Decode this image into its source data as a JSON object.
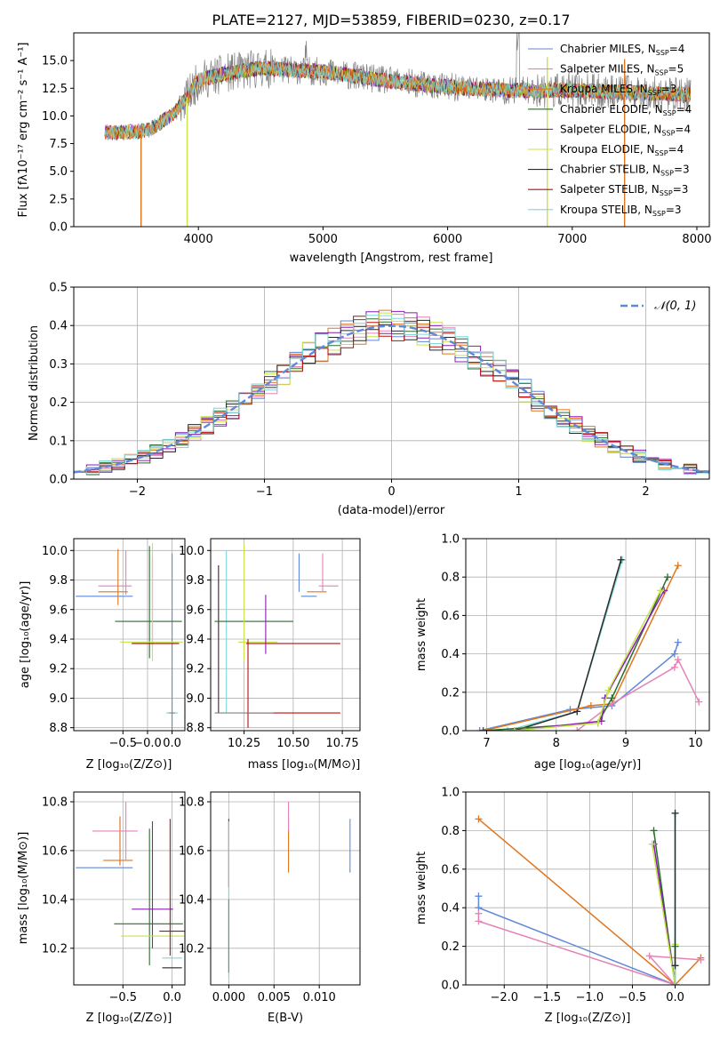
{
  "colors": {
    "chab_miles": "#5f88d9",
    "salp_miles": "#e583b6",
    "krou_miles": "#e0761d",
    "chab_elodie": "#2e6b2e",
    "salp_elodie": "#8a1db3",
    "krou_elodie": "#c6e34a",
    "chab_stelib": "#2a2a2a",
    "salp_stelib": "#b80e0e",
    "krou_stelib": "#7fd6d6",
    "data": "#808080",
    "normal": "#5f88d9"
  },
  "chart_data": [
    {
      "id": "spectrum",
      "type": "line",
      "title": "PLATE=2127, MJD=53859, FIBERID=0230, z=0.17",
      "xlabel": "wavelength [Angstrom, rest frame]",
      "ylabel": "Flux [fλ10⁻¹⁷ erg cm⁻² s⁻¹ A⁻¹]",
      "xlim": [
        3000,
        8100
      ],
      "ylim": [
        0,
        17.5
      ],
      "xticks": [
        "4000",
        "5000",
        "6000",
        "7000",
        "8000"
      ],
      "yticks": [
        "0.0",
        "2.5",
        "5.0",
        "7.5",
        "10.0",
        "12.5",
        "15.0"
      ],
      "legend": [
        "Chabrier MILES, N_SSP=4",
        "Salpeter MILES, N_SSP=5",
        "Kroupa MILES, N_SSP=3",
        "Chabrier ELODIE, N_SSP=4",
        "Salpeter ELODIE, N_SSP=4",
        "Kroupa ELODIE, N_SSP=4",
        "Chabrier STELIB, N_SSP=3",
        "Salpeter STELIB, N_SSP=3",
        "Kroupa STELIB, N_SSP=3"
      ],
      "legend_placement": "right",
      "data_trend": [
        [
          3250,
          8.5
        ],
        [
          3400,
          8.5
        ],
        [
          3600,
          8.7
        ],
        [
          3800,
          10.2
        ],
        [
          3900,
          11.5
        ],
        [
          4000,
          13.2
        ],
        [
          4200,
          13.8
        ],
        [
          4500,
          14.3
        ],
        [
          5000,
          14.0
        ],
        [
          5500,
          13.2
        ],
        [
          6000,
          12.6
        ],
        [
          6500,
          12.3
        ],
        [
          7000,
          12.3
        ],
        [
          7500,
          12.1
        ],
        [
          7950,
          11.9
        ]
      ],
      "model_dropouts": [
        {
          "series": "Kroupa MILES",
          "lambda_start": 3540,
          "lambda_end": 7420
        },
        {
          "series": "Kroupa ELODIE",
          "lambda_start": 3910,
          "lambda_end": 6800
        }
      ]
    },
    {
      "id": "residuals",
      "type": "bar",
      "xlabel": "(data-model)/error",
      "ylabel": "Normed distribution",
      "xlim": [
        -2.5,
        2.5
      ],
      "ylim": [
        0,
        0.5
      ],
      "xticks": [
        "−2",
        "−1",
        "0",
        "1",
        "2"
      ],
      "yticks": [
        "0.0",
        "0.1",
        "0.2",
        "0.3",
        "0.4",
        "0.5"
      ],
      "grid": true,
      "legend": [
        "𝒩(0, 1)"
      ],
      "legend_placement": "top-right",
      "bin_width": 0.1,
      "bin_start": -2.5
    },
    {
      "id": "age_vs_Z",
      "type": "scatter",
      "xlabel": "Z [log₁₀(Z/Z⊙)]",
      "ylabel": "age  [log₁₀(age/yr)]",
      "xlim": [
        -1.0,
        0.13
      ],
      "ylim": [
        8.78,
        10.08
      ],
      "xticks": [
        "−0.5",
        "−0.0",
        "0.0"
      ],
      "yticks": [
        "8.8",
        "9.0",
        "9.2",
        "9.4",
        "9.6",
        "9.8",
        "10.0"
      ],
      "grid": true,
      "crosses": [
        {
          "s": "chab_miles",
          "x": -0.69,
          "xerr": 0.29,
          "y": 9.69,
          "yerr": 0.0
        },
        {
          "s": "chab_miles",
          "x": 0.0,
          "xerr": 0.0,
          "y": 9.3,
          "yerr": 0.68
        },
        {
          "s": "salp_miles",
          "x": -0.58,
          "xerr": 0.17,
          "y": 9.76,
          "yerr": 0.0
        },
        {
          "s": "salp_miles",
          "x": -0.47,
          "xerr": 0.0,
          "y": 9.85,
          "yerr": 0.15
        },
        {
          "s": "krou_miles",
          "x": -0.6,
          "xerr": 0.15,
          "y": 9.72,
          "yerr": 0.0
        },
        {
          "s": "krou_miles",
          "x": -0.55,
          "xerr": 0.0,
          "y": 9.82,
          "yerr": 0.19
        },
        {
          "s": "chab_elodie",
          "x": -0.24,
          "xerr": 0.34,
          "y": 9.52,
          "yerr": 0.0
        },
        {
          "s": "chab_elodie",
          "x": -0.23,
          "xerr": 0.0,
          "y": 9.65,
          "yerr": 0.38
        },
        {
          "s": "salp_elodie",
          "x": -0.2,
          "xerr": 0.0,
          "y": 9.65,
          "yerr": 0.3
        },
        {
          "s": "krou_elodie",
          "x": -0.21,
          "xerr": 0.32,
          "y": 9.38,
          "yerr": 0.0
        },
        {
          "s": "krou_elodie",
          "x": -0.2,
          "xerr": 0.0,
          "y": 9.65,
          "yerr": 0.4
        },
        {
          "s": "chab_stelib",
          "x": -0.17,
          "xerr": 0.24,
          "y": 9.37,
          "yerr": 0.0
        },
        {
          "s": "salp_stelib",
          "x": -0.17,
          "xerr": 0.24,
          "y": 9.37,
          "yerr": 0.0
        },
        {
          "s": "krou_stelib",
          "x": 0.0,
          "xerr": 0.06,
          "y": 8.9,
          "yerr": 0.0
        },
        {
          "s": "data",
          "x": 0.0,
          "xerr": 0.03,
          "y": 8.9,
          "yerr": 0.0
        }
      ]
    },
    {
      "id": "age_vs_mass",
      "type": "scatter",
      "xlabel": "mass [log₁₀(M/M⊙)]",
      "xlim": [
        10.08,
        10.84
      ],
      "ylim": [
        8.78,
        10.08
      ],
      "xticks": [
        "10.25",
        "10.50",
        "10.75"
      ],
      "yticks": [
        "8.8",
        "9.0",
        "9.2",
        "9.4",
        "9.6",
        "9.8",
        "10.0"
      ],
      "grid": true,
      "crosses": [
        {
          "s": "chab_stelib",
          "x": 10.12,
          "xerr": 0.0,
          "y": 9.4,
          "yerr": 0.5
        },
        {
          "s": "krou_stelib",
          "x": 10.16,
          "xerr": 0.0,
          "y": 9.45,
          "yerr": 0.55
        },
        {
          "s": "chab_elodie",
          "x": 10.3,
          "xerr": 0.2,
          "y": 9.52,
          "yerr": 0.0
        },
        {
          "s": "krou_elodie",
          "x": 10.25,
          "xerr": 0.0,
          "y": 9.65,
          "yerr": 0.4
        },
        {
          "s": "krou_elodie",
          "x": 10.32,
          "xerr": 0.1,
          "y": 9.38,
          "yerr": 0.0
        },
        {
          "s": "salp_elodie",
          "x": 10.36,
          "xerr": 0.0,
          "y": 9.5,
          "yerr": 0.2
        },
        {
          "s": "salp_stelib",
          "x": 10.27,
          "xerr": 0.0,
          "y": 9.1,
          "yerr": 0.3
        },
        {
          "s": "salp_stelib",
          "x": 10.5,
          "xerr": 0.24,
          "y": 9.37,
          "yerr": 0.0
        },
        {
          "s": "salp_stelib",
          "x": 10.5,
          "xerr": 0.24,
          "y": 8.9,
          "yerr": 0.0
        },
        {
          "s": "chab_miles",
          "x": 10.58,
          "xerr": 0.04,
          "y": 9.69,
          "yerr": 0.0
        },
        {
          "s": "chab_miles",
          "x": 10.53,
          "xerr": 0.0,
          "y": 9.85,
          "yerr": 0.13
        },
        {
          "s": "krou_miles",
          "x": 10.62,
          "xerr": 0.05,
          "y": 9.72,
          "yerr": 0.0
        },
        {
          "s": "salp_miles",
          "x": 10.68,
          "xerr": 0.05,
          "y": 9.76,
          "yerr": 0.0
        },
        {
          "s": "salp_miles",
          "x": 10.65,
          "xerr": 0.0,
          "y": 9.85,
          "yerr": 0.13
        },
        {
          "s": "data",
          "x": 10.25,
          "xerr": 0.15,
          "y": 8.9,
          "yerr": 0.0
        }
      ]
    },
    {
      "id": "weight_vs_age",
      "type": "line",
      "xlabel": "age  [log₁₀(age/yr)]",
      "ylabel": "mass weight",
      "xlim": [
        6.7,
        10.2
      ],
      "ylim": [
        0,
        1.0
      ],
      "xticks": [
        "7",
        "8",
        "9",
        "10"
      ],
      "yticks": [
        "0.0",
        "0.2",
        "0.4",
        "0.6",
        "0.8",
        "1.0"
      ],
      "grid": true,
      "series": [
        {
          "s": "krou_stelib",
          "points": [
            [
              7.3,
              0.0
            ],
            [
              8.3,
              0.1
            ],
            [
              8.95,
              0.89
            ]
          ]
        },
        {
          "s": "chab_stelib",
          "points": [
            [
              7.4,
              0.0
            ],
            [
              8.3,
              0.1
            ],
            [
              8.93,
              0.89
            ]
          ]
        },
        {
          "s": "chab_miles",
          "points": [
            [
              6.9,
              0.0
            ],
            [
              8.2,
              0.11
            ],
            [
              8.8,
              0.13
            ],
            [
              9.7,
              0.4
            ],
            [
              9.75,
              0.46
            ]
          ]
        },
        {
          "s": "krou_miles",
          "points": [
            [
              6.95,
              0.0
            ],
            [
              8.5,
              0.13
            ],
            [
              8.8,
              0.14
            ],
            [
              9.75,
              0.86
            ]
          ]
        },
        {
          "s": "salp_miles",
          "points": [
            [
              8.3,
              0.0
            ],
            [
              8.8,
              0.14
            ],
            [
              9.7,
              0.33
            ],
            [
              9.75,
              0.37
            ],
            [
              10.05,
              0.15
            ]
          ]
        },
        {
          "s": "chab_elodie",
          "points": [
            [
              6.95,
              0.0
            ],
            [
              8.6,
              0.04
            ],
            [
              8.8,
              0.17
            ],
            [
              9.6,
              0.8
            ]
          ]
        },
        {
          "s": "salp_elodie",
          "points": [
            [
              7.4,
              0.0
            ],
            [
              8.65,
              0.05
            ],
            [
              8.7,
              0.17
            ],
            [
              9.55,
              0.73
            ]
          ]
        },
        {
          "s": "krou_elodie",
          "points": [
            [
              7.4,
              0.0
            ],
            [
              8.6,
              0.04
            ],
            [
              8.75,
              0.21
            ],
            [
              9.5,
              0.73
            ]
          ]
        }
      ]
    },
    {
      "id": "mass_vs_Z",
      "type": "scatter",
      "xlabel": "Z [log₁₀(Z/Z⊙)]",
      "ylabel": "mass [log₁₀(M/M⊙)]",
      "xlim": [
        -1.0,
        0.13
      ],
      "ylim": [
        10.05,
        10.84
      ],
      "xticks": [
        "−0.5",
        "0.0"
      ],
      "yticks": [
        "10.2",
        "10.4",
        "10.6",
        "10.8"
      ],
      "grid": true,
      "crosses": [
        {
          "s": "chab_miles",
          "x": -0.69,
          "xerr": 0.29,
          "y": 10.53,
          "yerr": 0.0
        },
        {
          "s": "chab_miles",
          "x": -0.53,
          "xerr": 0.0,
          "y": 10.64,
          "yerr": 0.1
        },
        {
          "s": "krou_miles",
          "x": -0.55,
          "xerr": 0.15,
          "y": 10.56,
          "yerr": 0.0
        },
        {
          "s": "krou_miles",
          "x": -0.53,
          "xerr": 0.0,
          "y": 10.64,
          "yerr": 0.1
        },
        {
          "s": "salp_miles",
          "x": -0.58,
          "xerr": 0.23,
          "y": 10.68,
          "yerr": 0.0
        },
        {
          "s": "salp_miles",
          "x": -0.47,
          "xerr": 0.0,
          "y": 10.68,
          "yerr": 0.12
        },
        {
          "s": "chab_elodie",
          "x": -0.24,
          "xerr": 0.35,
          "y": 10.3,
          "yerr": 0.0
        },
        {
          "s": "chab_elodie",
          "x": -0.23,
          "xerr": 0.0,
          "y": 10.41,
          "yerr": 0.28
        },
        {
          "s": "salp_elodie",
          "x": -0.2,
          "xerr": 0.21,
          "y": 10.36,
          "yerr": 0.0
        },
        {
          "s": "salp_elodie",
          "x": -0.2,
          "xerr": 0.0,
          "y": 10.46,
          "yerr": 0.26
        },
        {
          "s": "krou_elodie",
          "x": -0.2,
          "xerr": 0.32,
          "y": 10.25,
          "yerr": 0.0
        },
        {
          "s": "salp_stelib",
          "x": 0.0,
          "xerr": 0.13,
          "y": 10.27,
          "yerr": 0.0
        },
        {
          "s": "salp_stelib",
          "x": -0.02,
          "xerr": 0.0,
          "y": 10.45,
          "yerr": 0.28
        },
        {
          "s": "krou_stelib",
          "x": 0.0,
          "xerr": 0.1,
          "y": 10.16,
          "yerr": 0.0
        },
        {
          "s": "chab_stelib",
          "x": 0.0,
          "xerr": 0.1,
          "y": 10.12,
          "yerr": 0.0
        }
      ]
    },
    {
      "id": "mass_vs_ebv",
      "type": "scatter",
      "xlabel": "E(B-V)",
      "xlim": [
        -0.002,
        0.0145
      ],
      "ylim": [
        10.05,
        10.84
      ],
      "xticks": [
        "0.000",
        "0.005",
        "0.010"
      ],
      "yticks": [
        "10.2",
        "10.4",
        "10.6",
        "10.8"
      ],
      "grid": true,
      "crosses": [
        {
          "s": "salp_stelib",
          "x": 0.0,
          "xerr": 0.0,
          "y": 10.59,
          "yerr": 0.14
        },
        {
          "s": "krou_stelib",
          "x": 0.0,
          "xerr": 0.0,
          "y": 10.4,
          "yerr": 0.32
        },
        {
          "s": "data",
          "x": 0.0,
          "xerr": 0.0,
          "y": 10.25,
          "yerr": 0.15
        },
        {
          "s": "krou_miles",
          "x": 0.0066,
          "xerr": 0.0,
          "y": 10.62,
          "yerr": 0.11
        },
        {
          "s": "salp_miles",
          "x": 0.0066,
          "xerr": 0.0,
          "y": 10.74,
          "yerr": 0.06
        },
        {
          "s": "chab_miles",
          "x": 0.0134,
          "xerr": 0.0,
          "y": 10.62,
          "yerr": 0.11
        }
      ]
    },
    {
      "id": "weight_vs_Z",
      "type": "line",
      "xlabel": "Z [log₁₀(Z/Z⊙)]",
      "ylabel": "mass weight",
      "xlim": [
        -2.45,
        0.4
      ],
      "ylim": [
        0,
        1.0
      ],
      "xticks": [
        "−2.0",
        "−1.5",
        "−1.0",
        "−0.5",
        "0.0"
      ],
      "yticks": [
        "0.0",
        "0.2",
        "0.4",
        "0.6",
        "0.8",
        "1.0"
      ],
      "grid": true,
      "series": [
        {
          "s": "krou_miles",
          "points": [
            [
              -2.3,
              0.86
            ],
            [
              0.0,
              0.0
            ],
            [
              0.3,
              0.14
            ]
          ]
        },
        {
          "s": "chab_miles",
          "points": [
            [
              -2.3,
              0.46
            ],
            [
              -2.3,
              0.4
            ],
            [
              0.0,
              0.0
            ]
          ]
        },
        {
          "s": "salp_miles",
          "points": [
            [
              -2.3,
              0.37
            ],
            [
              -2.3,
              0.33
            ],
            [
              0.0,
              0.0
            ],
            [
              -0.3,
              0.15
            ],
            [
              0.3,
              0.13
            ]
          ]
        },
        {
          "s": "chab_elodie",
          "points": [
            [
              -0.25,
              0.8
            ],
            [
              0.0,
              0.0
            ],
            [
              0.0,
              0.2
            ]
          ]
        },
        {
          "s": "salp_elodie",
          "points": [
            [
              -0.25,
              0.73
            ],
            [
              0.0,
              0.0
            ]
          ]
        },
        {
          "s": "krou_elodie",
          "points": [
            [
              -0.27,
              0.73
            ],
            [
              0.0,
              0.0
            ],
            [
              0.0,
              0.21
            ]
          ]
        },
        {
          "s": "krou_stelib",
          "points": [
            [
              0.0,
              0.89
            ],
            [
              0.0,
              0.0
            ]
          ]
        },
        {
          "s": "chab_stelib",
          "points": [
            [
              0.0,
              0.89
            ],
            [
              0.0,
              0.1
            ]
          ]
        }
      ]
    }
  ]
}
